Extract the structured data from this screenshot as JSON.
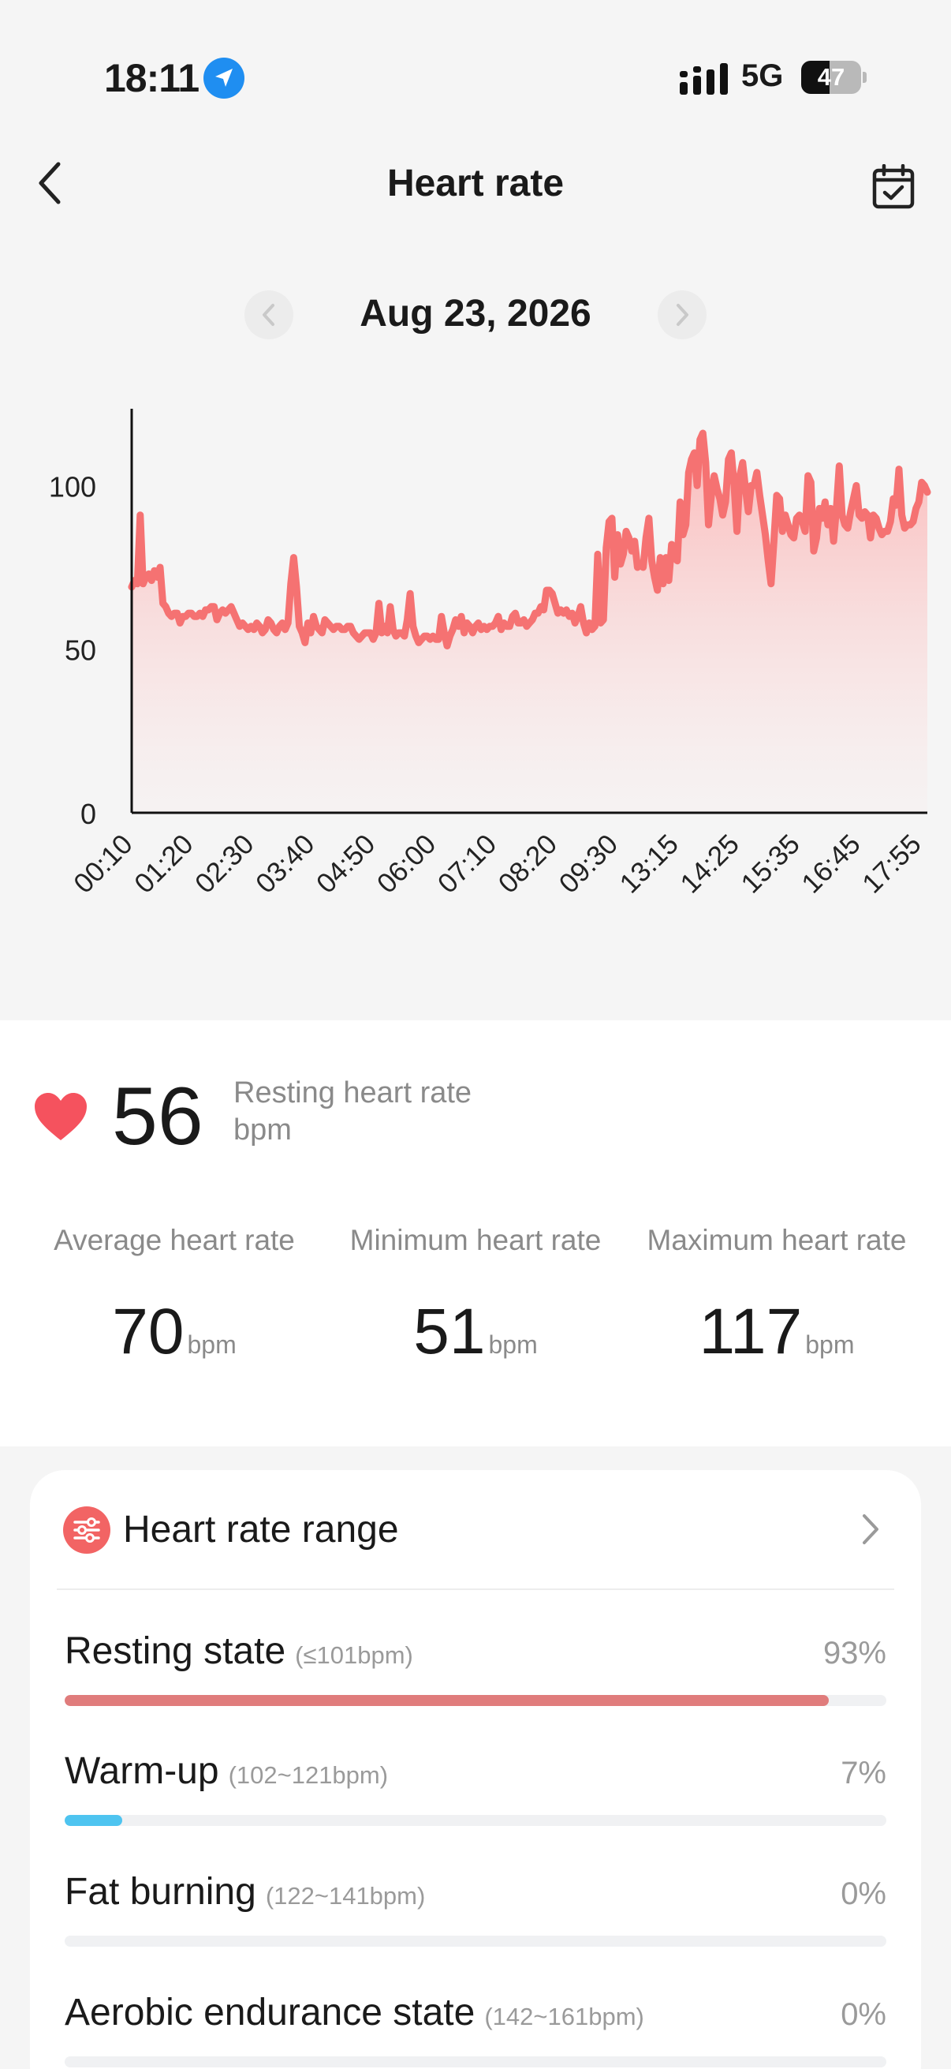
{
  "status_bar": {
    "time": "18:11",
    "network": "5G",
    "battery_level": "47",
    "battery_percent": 47,
    "icons": [
      "location-arrow-icon",
      "cellular-signal-icon",
      "battery-icon"
    ]
  },
  "header": {
    "title": "Heart rate",
    "icons": [
      "chevron-left-icon",
      "calendar-check-icon"
    ]
  },
  "date_nav": {
    "date": "Aug 23, 2026",
    "icons": [
      "chevron-left-icon",
      "chevron-right-icon"
    ]
  },
  "chart_data": {
    "type": "area",
    "y_ticks": [
      0,
      50,
      100
    ],
    "ylim": [
      0,
      123
    ],
    "x_labels": [
      "00:10",
      "01:20",
      "02:30",
      "03:40",
      "04:50",
      "06:00",
      "07:10",
      "08:20",
      "09:30",
      "13:15",
      "14:25",
      "15:35",
      "16:45",
      "17:55"
    ],
    "values": [
      69,
      71,
      70,
      91,
      70,
      72,
      73,
      71,
      74,
      72,
      75,
      64,
      63,
      61,
      60,
      61,
      61,
      58,
      60,
      60,
      61,
      61,
      60,
      60,
      61,
      60,
      62,
      62,
      63,
      63,
      59,
      61,
      62,
      61,
      62,
      63,
      61,
      59,
      57,
      58,
      57,
      56,
      57,
      56,
      58,
      57,
      55,
      56,
      59,
      58,
      56,
      55,
      57,
      58,
      56,
      58,
      70,
      78,
      69,
      57,
      55,
      52,
      58,
      55,
      60,
      57,
      56,
      55,
      59,
      58,
      57,
      56,
      57,
      57,
      56,
      56,
      57,
      57,
      55,
      54,
      53,
      54,
      55,
      55,
      55,
      53,
      55,
      64,
      55,
      57,
      55,
      63,
      56,
      54,
      55,
      55,
      54,
      59,
      67,
      57,
      54,
      52,
      53,
      54,
      54,
      53,
      54,
      53,
      53,
      60,
      55,
      51,
      54,
      56,
      59,
      57,
      60,
      55,
      58,
      57,
      55,
      57,
      58,
      56,
      57,
      56,
      57,
      57,
      58,
      60,
      56,
      58,
      57,
      57,
      60,
      61,
      58,
      58,
      59,
      57,
      58,
      59,
      61,
      61,
      63,
      62,
      68,
      68,
      67,
      64,
      61,
      62,
      61,
      62,
      60,
      61,
      58,
      60,
      63,
      58,
      55,
      58,
      56,
      57,
      79,
      58,
      59,
      81,
      89,
      90,
      72,
      85,
      76,
      79,
      86,
      84,
      80,
      83,
      75,
      76,
      75,
      84,
      90,
      77,
      72,
      68,
      78,
      70,
      78,
      71,
      82,
      78,
      77,
      95,
      85,
      88,
      104,
      108,
      110,
      100,
      114,
      116,
      107,
      88,
      97,
      103,
      99,
      96,
      91,
      95,
      108,
      110,
      100,
      86,
      103,
      107,
      99,
      92,
      100,
      100,
      104,
      97,
      91,
      85,
      77,
      70,
      83,
      97,
      96,
      86,
      91,
      88,
      85,
      84,
      90,
      91,
      89,
      86,
      103,
      101,
      80,
      84,
      93,
      90,
      95,
      88,
      93,
      83,
      93,
      106,
      91,
      88,
      87,
      92,
      96,
      100,
      91,
      90,
      92,
      91,
      84,
      91,
      90,
      87,
      85,
      86,
      86,
      89,
      96,
      94,
      105,
      91,
      87,
      88,
      88,
      89,
      93,
      95,
      101,
      100,
      98
    ]
  },
  "resting": {
    "value": "56",
    "label": "Resting heart rate",
    "unit": "bpm",
    "icon": "heart-icon"
  },
  "stats": [
    {
      "label": "Average heart rate",
      "value": "70",
      "unit": "bpm"
    },
    {
      "label": "Minimum heart rate",
      "value": "51",
      "unit": "bpm"
    },
    {
      "label": "Maximum heart rate",
      "value": "117",
      "unit": "bpm"
    }
  ],
  "range_card": {
    "title": "Heart rate range",
    "icons": [
      "sliders-icon",
      "chevron-right-icon"
    ],
    "items": [
      {
        "name": "Resting state",
        "bounds": "(≤101bpm)",
        "percent": "93%",
        "fraction": 0.93,
        "color": "#e07c7c"
      },
      {
        "name": "Warm-up",
        "bounds": "(102~121bpm)",
        "percent": "7%",
        "fraction": 0.07,
        "color": "#4ec4f0"
      },
      {
        "name": "Fat burning",
        "bounds": "(122~141bpm)",
        "percent": "0%",
        "fraction": 0,
        "color": "#f0b04e"
      },
      {
        "name": "Aerobic endurance state",
        "bounds": "(142~161bpm)",
        "percent": "0%",
        "fraction": 0,
        "color": "#f08a4e"
      }
    ]
  },
  "colors": {
    "line": "#f57272",
    "area_top": "#fbb4b4",
    "heart": "#f5525e",
    "range_icon": "#f26464"
  }
}
